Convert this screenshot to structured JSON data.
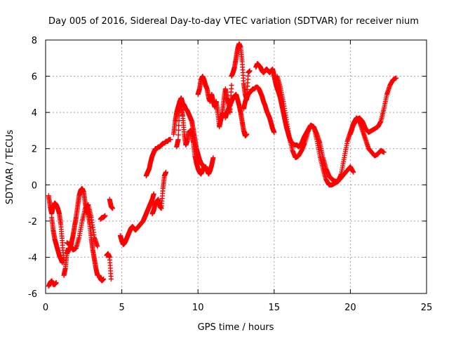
{
  "chart_data": {
    "type": "scatter",
    "title": "Day 005 of 2016, Sidereal Day-to-day VTEC variation (SDTVAR) for receiver nium",
    "xlabel": "GPS time / hours",
    "ylabel": "SDTVAR / TECUs",
    "xlim": [
      0,
      25
    ],
    "ylim": [
      -6,
      8
    ],
    "xticks": [
      0,
      5,
      10,
      15,
      20,
      25
    ],
    "yticks": [
      -6,
      -4,
      -2,
      0,
      2,
      4,
      6,
      8
    ],
    "grid": true,
    "marker": "+",
    "color": "#ff0000",
    "series": [
      {
        "name": "segment-1",
        "x": [
          0.2,
          0.3,
          0.4,
          0.5,
          0.6,
          0.7,
          0.8,
          0.9,
          1.0,
          1.1,
          1.2
        ],
        "y": [
          -0.6,
          -1.2,
          -1.6,
          -1.2,
          -1.0,
          -1.1,
          -1.3,
          -1.6,
          -2.2,
          -3.2,
          -4.3
        ]
      },
      {
        "name": "segment-2",
        "x": [
          0.2,
          0.3,
          0.4,
          0.5,
          0.6,
          0.7
        ],
        "y": [
          -5.6,
          -5.4,
          -5.3,
          -5.5,
          -5.5,
          -5.4
        ]
      },
      {
        "name": "segment-3",
        "x": [
          0.4,
          0.5,
          0.6,
          0.7,
          0.8,
          0.9,
          1.0,
          1.1
        ],
        "y": [
          -1.8,
          -2.5,
          -3.0,
          -3.3,
          -3.6,
          -3.9,
          -4.1,
          -4.3
        ]
      },
      {
        "name": "segment-4",
        "x": [
          1.2,
          1.3,
          1.4,
          1.5,
          1.6,
          1.7,
          1.8,
          1.9,
          2.0,
          2.1,
          2.2,
          2.3,
          2.4,
          2.5,
          2.6,
          2.7,
          2.8,
          2.9,
          3.0,
          3.1,
          3.2,
          3.3,
          3.4
        ],
        "y": [
          -5.0,
          -4.6,
          -3.8,
          -3.5,
          -3.6,
          -3.2,
          -2.8,
          -2.3,
          -1.8,
          -1.2,
          -0.6,
          -0.3,
          -0.2,
          -0.4,
          -1.0,
          -1.5,
          -1.6,
          -2.2,
          -3.0,
          -3.6,
          -4.1,
          -4.6,
          -5.0
        ]
      },
      {
        "name": "segment-5",
        "x": [
          1.4,
          1.6,
          1.8,
          2.0,
          2.2,
          2.4,
          2.6,
          2.8,
          3.0,
          3.2,
          3.4
        ],
        "y": [
          -3.2,
          -3.3,
          -3.6,
          -3.5,
          -2.9,
          -2.0,
          -1.3,
          -1.1,
          -1.8,
          -2.9,
          -3.4
        ]
      },
      {
        "name": "segment-6",
        "x": [
          3.5,
          3.6,
          3.7,
          3.8
        ],
        "y": [
          -5.0,
          -5.2,
          -5.3,
          -5.2
        ]
      },
      {
        "name": "segment-7",
        "x": [
          3.6,
          3.7,
          3.8,
          3.9
        ],
        "y": [
          -1.9,
          -1.8,
          -1.8,
          -1.7
        ]
      },
      {
        "name": "segment-8",
        "x": [
          4.0,
          4.1,
          4.2,
          4.3
        ],
        "y": [
          -3.9,
          -3.8,
          -4.0,
          -5.2
        ]
      },
      {
        "name": "segment-9",
        "x": [
          4.2,
          4.3,
          4.4
        ],
        "y": [
          -0.8,
          -1.2,
          -1.3
        ]
      },
      {
        "name": "segment-10",
        "x": [
          4.9,
          5.0,
          5.1,
          5.2,
          5.3,
          5.4,
          5.5,
          5.6,
          5.7,
          5.8,
          5.9,
          6.0,
          6.1,
          6.2,
          6.3,
          6.4,
          6.5,
          6.6,
          6.7,
          6.8,
          6.9,
          7.0,
          7.1
        ],
        "y": [
          -2.8,
          -3.1,
          -3.3,
          -3.2,
          -3.0,
          -2.8,
          -2.6,
          -2.4,
          -2.3,
          -2.4,
          -2.5,
          -2.4,
          -2.3,
          -2.2,
          -2.1,
          -2.0,
          -1.8,
          -1.6,
          -1.4,
          -1.2,
          -1.0,
          -0.8,
          -0.5
        ]
      },
      {
        "name": "segment-11",
        "x": [
          7.0,
          7.1,
          7.2,
          7.3,
          7.4,
          7.5,
          7.6,
          7.7,
          7.8,
          7.9
        ],
        "y": [
          -1.6,
          -1.4,
          -1.0,
          -0.9,
          -0.8,
          -1.2,
          -1.3,
          -0.2,
          0.5,
          0.7
        ]
      },
      {
        "name": "segment-12",
        "x": [
          6.6,
          6.7,
          6.8,
          6.9,
          7.0,
          7.1,
          7.2,
          7.3,
          7.4,
          7.5,
          7.6,
          7.7,
          7.8,
          7.9,
          8.0,
          8.1,
          8.2
        ],
        "y": [
          0.5,
          0.7,
          0.9,
          1.3,
          1.6,
          1.8,
          2.0,
          2.0,
          2.1,
          2.1,
          2.2,
          2.3,
          2.3,
          2.4,
          2.4,
          2.5,
          2.5
        ]
      },
      {
        "name": "segment-13",
        "x": [
          8.4,
          8.5,
          8.6,
          8.7,
          8.8,
          8.9,
          9.0,
          9.1,
          9.2,
          9.3,
          9.4,
          9.5,
          9.6,
          9.7,
          9.8,
          9.9,
          10.0,
          10.1,
          10.2,
          10.3,
          10.4,
          10.5,
          10.6,
          10.7,
          10.8,
          10.9,
          11.0
        ],
        "y": [
          2.8,
          3.5,
          4.0,
          4.3,
          4.6,
          4.3,
          3.8,
          2.8,
          2.2,
          2.4,
          2.9,
          3.0,
          2.8,
          2.3,
          1.6,
          1.2,
          0.9,
          0.7,
          0.6,
          0.8,
          1.0,
          1.0,
          0.8,
          0.6,
          0.8,
          1.1,
          1.5
        ]
      },
      {
        "name": "segment-14",
        "x": [
          8.6,
          8.7,
          8.8,
          8.9,
          9.0,
          9.1,
          9.2,
          9.3,
          9.4,
          9.5,
          9.6,
          9.7,
          9.8,
          9.9,
          10.0,
          10.1,
          10.2,
          10.3,
          10.4
        ],
        "y": [
          2.1,
          2.5,
          4.6,
          4.8,
          4.5,
          4.4,
          4.2,
          4.1,
          3.9,
          3.7,
          3.5,
          3.0,
          2.5,
          2.0,
          1.7,
          1.4,
          1.2,
          1.1,
          1.0
        ]
      },
      {
        "name": "segment-15",
        "x": [
          10.0,
          10.1,
          10.2,
          10.3,
          10.4,
          10.5,
          10.6,
          10.7,
          10.8,
          10.9,
          11.0,
          11.1,
          11.2,
          11.3,
          11.4,
          11.5,
          11.6,
          11.7,
          11.8,
          11.9,
          12.0,
          12.1,
          12.2
        ],
        "y": [
          5.0,
          5.3,
          5.8,
          6.0,
          5.8,
          5.5,
          5.3,
          4.8,
          4.6,
          5.0,
          4.6,
          4.3,
          4.6,
          4.0,
          3.2,
          3.6,
          4.0,
          4.7,
          5.3,
          4.8,
          4.5,
          4.0,
          5.5
        ]
      },
      {
        "name": "segment-16",
        "x": [
          12.2,
          12.3,
          12.4,
          12.5,
          12.6,
          12.7,
          12.8,
          12.9,
          13.0,
          13.1,
          13.2,
          13.3,
          13.4
        ],
        "y": [
          6.0,
          6.2,
          6.5,
          7.0,
          7.5,
          7.8,
          7.6,
          6.8,
          5.6,
          5.0,
          4.7,
          6.2,
          6.3
        ]
      },
      {
        "name": "segment-17",
        "x": [
          11.8,
          11.9,
          12.0,
          12.1,
          12.2,
          12.3,
          12.4,
          12.5,
          12.6,
          12.7,
          12.8,
          12.9,
          13.0,
          13.1,
          13.2
        ],
        "y": [
          3.7,
          4.0,
          4.2,
          4.4,
          4.6,
          4.8,
          4.9,
          5.0,
          4.7,
          4.4,
          4.0,
          3.5,
          3.0,
          2.7,
          2.8
        ]
      },
      {
        "name": "segment-18",
        "x": [
          13.0,
          13.1,
          13.2,
          13.3,
          13.4,
          13.5,
          13.6,
          13.7,
          13.8,
          13.9,
          14.0,
          14.1,
          14.2,
          14.3,
          14.4,
          14.5,
          14.6,
          14.7,
          14.8,
          14.9,
          15.0
        ],
        "y": [
          4.2,
          4.6,
          4.8,
          5.0,
          5.1,
          5.2,
          5.3,
          5.3,
          5.4,
          5.4,
          5.3,
          5.1,
          4.9,
          4.6,
          4.4,
          4.1,
          3.9,
          3.7,
          3.4,
          3.1,
          2.9
        ]
      },
      {
        "name": "segment-19",
        "x": [
          13.8,
          13.9,
          14.0,
          14.1,
          14.2,
          14.3,
          14.4,
          14.5,
          14.6,
          14.7,
          14.8,
          14.9,
          15.0,
          15.1,
          15.2,
          15.3,
          15.4,
          15.5,
          15.6,
          15.7,
          15.8,
          15.9,
          16.0,
          16.1,
          16.2,
          16.3,
          16.4,
          16.5,
          16.6,
          16.7,
          16.8,
          16.9,
          17.0,
          17.2,
          17.4,
          17.6,
          17.8,
          18.0,
          18.2,
          18.4,
          18.6,
          18.8,
          19.0,
          19.2,
          19.4,
          19.6,
          19.8,
          20.0,
          20.2
        ],
        "y": [
          6.5,
          6.7,
          6.6,
          6.5,
          6.3,
          6.2,
          6.3,
          6.4,
          6.3,
          6.2,
          6.3,
          6.4,
          6.0,
          5.6,
          5.3,
          5.1,
          4.8,
          4.4,
          4.0,
          3.6,
          3.2,
          2.9,
          2.6,
          2.4,
          2.3,
          2.2,
          2.2,
          2.2,
          2.1,
          2.2,
          2.3,
          2.5,
          2.7,
          3.0,
          3.3,
          3.2,
          2.8,
          2.3,
          1.5,
          0.9,
          0.5,
          0.3,
          0.2,
          0.2,
          0.4,
          0.6,
          0.8,
          1.0,
          0.7
        ]
      },
      {
        "name": "segment-20",
        "x": [
          15.2,
          15.4,
          15.6,
          15.8,
          16.0,
          16.2,
          16.4,
          16.6,
          16.8,
          17.0,
          17.2,
          17.4,
          17.6,
          17.8,
          18.0,
          18.2,
          18.4,
          18.6,
          18.8,
          19.0,
          19.2,
          19.4,
          19.6,
          19.8,
          20.0,
          20.2,
          20.4,
          20.6,
          20.8,
          21.0,
          21.2,
          21.4,
          21.6,
          21.8,
          22.0,
          22.2
        ],
        "y": [
          6.0,
          5.4,
          4.6,
          3.6,
          2.6,
          1.9,
          1.5,
          1.6,
          1.9,
          2.3,
          2.9,
          3.3,
          3.2,
          2.5,
          1.6,
          0.9,
          0.3,
          0.0,
          0.0,
          0.1,
          0.2,
          0.6,
          1.5,
          2.4,
          2.9,
          3.4,
          3.7,
          3.5,
          3.0,
          2.5,
          2.0,
          1.8,
          1.6,
          1.7,
          1.9,
          1.8
        ]
      },
      {
        "name": "segment-21",
        "x": [
          20.0,
          20.2,
          20.4,
          20.6,
          20.8,
          21.0,
          21.2,
          21.4,
          21.6,
          21.8,
          22.0,
          22.2,
          22.4,
          22.6,
          22.8,
          23.0
        ],
        "y": [
          2.8,
          3.3,
          3.6,
          3.7,
          3.5,
          3.1,
          2.9,
          3.0,
          3.1,
          3.2,
          3.5,
          4.2,
          5.0,
          5.5,
          5.8,
          5.9
        ]
      }
    ]
  }
}
